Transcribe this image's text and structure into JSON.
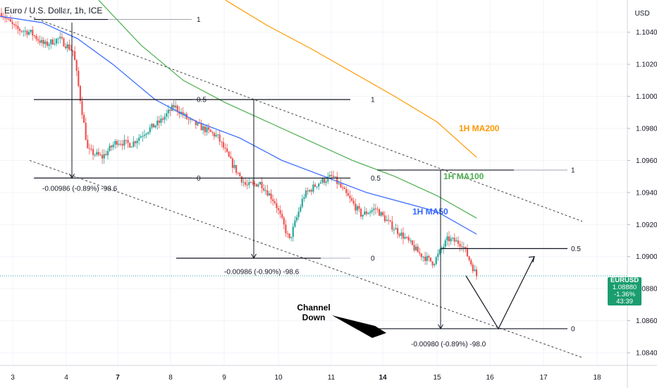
{
  "header": {
    "title": "Euro / U.S. Dollar, 1h, ICE",
    "currency": "USD"
  },
  "price_tag": {
    "ticker": "EURUSD",
    "price": "1.08880",
    "change": "-1.36%",
    "countdown": "43:39"
  },
  "colors": {
    "up": "#26a69a",
    "down": "#ef5350",
    "ma50": "#3366ff",
    "ma100": "#4caf50",
    "ma200": "#ff9800",
    "price_tag": "#1a9d6f"
  },
  "chart_data": {
    "type": "candlestick",
    "symbol": "EURUSD",
    "timeframe": "1h",
    "ylim": [
      1.083,
      1.106
    ],
    "y_ticks": [
      "1.10400",
      "1.10200",
      "1.10000",
      "1.09800",
      "1.09600",
      "1.09400",
      "1.09200",
      "1.09000",
      "1.08800",
      "1.08600",
      "1.08400"
    ],
    "x_ticks": [
      "3",
      "4",
      "7",
      "8",
      "9",
      "10",
      "11",
      "14",
      "15",
      "16",
      "17",
      "18"
    ],
    "bold_x_ticks": [
      "7",
      "14"
    ],
    "price_path": [
      [
        "3",
        1.1052
      ],
      [
        "3",
        1.1042
      ],
      [
        "4",
        1.104
      ],
      [
        "4",
        1.1032
      ],
      [
        "4",
        1.1036
      ],
      [
        "4",
        1.1028
      ],
      [
        "7",
        1.0966
      ],
      [
        "7",
        1.0962
      ],
      [
        "7",
        1.0972
      ],
      [
        "7",
        1.097
      ],
      [
        "8",
        1.0978
      ],
      [
        "8",
        1.0984
      ],
      [
        "8",
        1.0994
      ],
      [
        "8",
        1.0985
      ],
      [
        "9",
        1.098
      ],
      [
        "9",
        1.0975
      ],
      [
        "9",
        1.0958
      ],
      [
        "10",
        1.0944
      ],
      [
        "10",
        1.0946
      ],
      [
        "10",
        1.0934
      ],
      [
        "10",
        1.091
      ],
      [
        "11",
        1.0938
      ],
      [
        "11",
        1.0946
      ],
      [
        "11",
        1.095
      ],
      [
        "11",
        1.0938
      ],
      [
        "14",
        1.0926
      ],
      [
        "14",
        1.093
      ],
      [
        "14",
        1.092
      ],
      [
        "15",
        1.0912
      ],
      [
        "15",
        1.0902
      ],
      [
        "15",
        1.0896
      ],
      [
        "15",
        1.0911
      ],
      [
        "16",
        1.0908
      ],
      [
        "16",
        1.0888
      ]
    ],
    "last_price": 1.0888,
    "projection": [
      [
        "16",
        1.0888
      ],
      [
        "16",
        1.0855
      ],
      [
        "17",
        1.09
      ]
    ],
    "moving_averages": [
      {
        "name": "1H MA50",
        "color": "#3366ff"
      },
      {
        "name": "1H MA100",
        "color": "#4caf50"
      },
      {
        "name": "1H MA200",
        "color": "#ff9800"
      }
    ],
    "channel": {
      "label": "Channel\nDown"
    },
    "fib_levels": [
      {
        "labels": [
          "1",
          "0.5",
          "0"
        ],
        "prices": [
          1.1048,
          1.0998,
          1.0949
        ]
      },
      {
        "labels": [
          "1",
          "0.5",
          "0"
        ],
        "prices": [
          1.0998,
          1.0949,
          1.0899
        ]
      },
      {
        "labels": [
          "1",
          "0.5",
          "0"
        ],
        "prices": [
          1.0954,
          1.0905,
          1.0855
        ]
      }
    ],
    "measurements": [
      "-0.00986 (-0.89%) -98.6",
      "-0.00986 (-0.90%) -98.6",
      "-0.00980 (-0.89%) -98.0"
    ]
  }
}
